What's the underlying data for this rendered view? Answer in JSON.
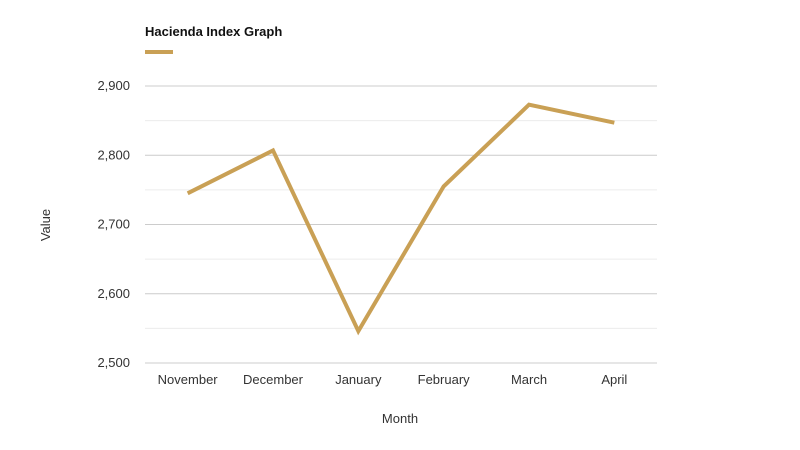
{
  "chart_data": {
    "type": "line",
    "legend_title": "Hacienda Index Graph",
    "legend_position": "top-left",
    "xlabel": "Month",
    "ylabel": "Value",
    "ylim": [
      2500,
      2900
    ],
    "yticks": [
      2500,
      2600,
      2700,
      2800,
      2900
    ],
    "ytick_labels": [
      "2,500",
      "2,600",
      "2,700",
      "2,800",
      "2,900"
    ],
    "grid": true,
    "categories": [
      "November",
      "December",
      "January",
      "February",
      "March",
      "April"
    ],
    "series": [
      {
        "name": "Hacienda Index Graph",
        "color": "#C9A055",
        "values": [
          2745,
          2807,
          2546,
          2755,
          2873,
          2847
        ]
      }
    ]
  }
}
